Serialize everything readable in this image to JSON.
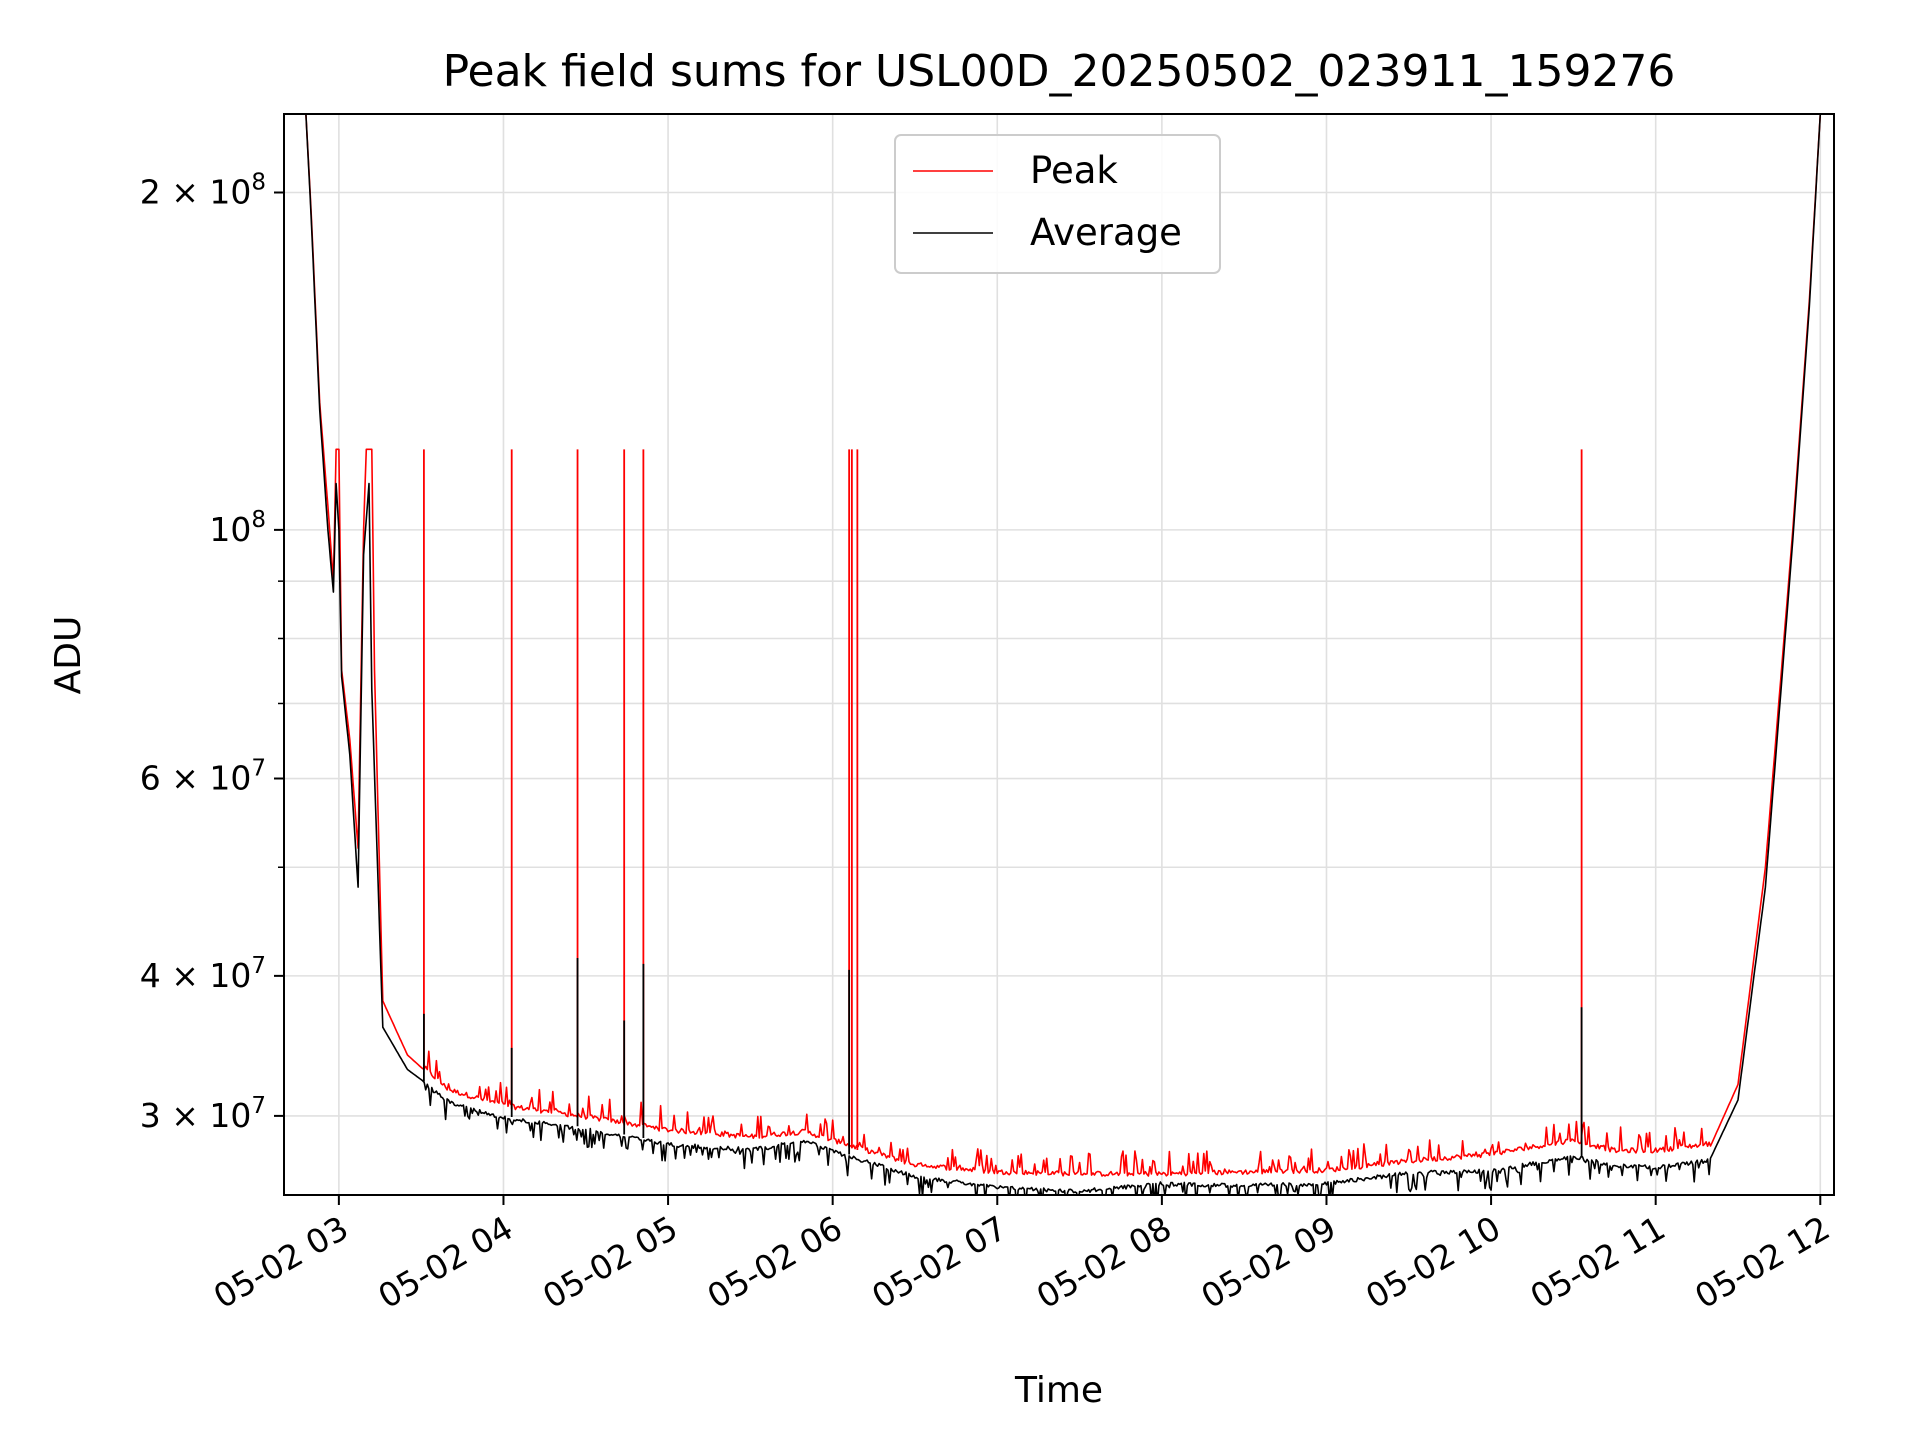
{
  "chart_data": {
    "type": "line",
    "title": "Peak field sums for USL00D_20250502_023911_159276",
    "xlabel": "Time",
    "ylabel": "ADU",
    "yscale": "log",
    "ylim": [
      25500000,
      235000000
    ],
    "xlim": [
      "2025-05-02 02:40",
      "2025-05-02 12:05"
    ],
    "grid": true,
    "legend": {
      "placement": "top-center",
      "entries": [
        "Peak",
        "Average"
      ]
    },
    "x_tick_labels": [
      "05-02 03",
      "05-02 04",
      "05-02 05",
      "05-02 06",
      "05-02 07",
      "05-02 08",
      "05-02 09",
      "05-02 10",
      "05-02 11",
      "05-02 12"
    ],
    "x_ticks": [
      "2025-05-02 03:00",
      "2025-05-02 04:00",
      "2025-05-02 05:00",
      "2025-05-02 06:00",
      "2025-05-02 07:00",
      "2025-05-02 08:00",
      "2025-05-02 09:00",
      "2025-05-02 10:00",
      "2025-05-02 11:00",
      "2025-05-02 12:00"
    ],
    "y_ticks": [
      {
        "value": 30000000,
        "mantissa": "3",
        "exponent": "7"
      },
      {
        "value": 40000000,
        "mantissa": "4",
        "exponent": "7"
      },
      {
        "value": 60000000,
        "mantissa": "6",
        "exponent": "7"
      },
      {
        "value": 100000000,
        "mantissa": "",
        "exponent": "8"
      },
      {
        "value": 200000000,
        "mantissa": "2",
        "exponent": "8"
      }
    ],
    "y_minor_ticks": [
      50000000,
      70000000,
      80000000,
      90000000
    ],
    "times_symbol": "×",
    "base": "10",
    "series": [
      {
        "name": "Peak",
        "color": "#ff0000",
        "points": [
          [
            "2025-05-02 02:40",
            235000000
          ],
          [
            "2025-05-02 02:48",
            235000000
          ],
          [
            "2025-05-02 02:50",
            190000000
          ],
          [
            "2025-05-02 02:53",
            130000000
          ],
          [
            "2025-05-02 02:56",
            105000000
          ],
          [
            "2025-05-02 02:58",
            90000000
          ],
          [
            "2025-05-02 02:59",
            118000000
          ],
          [
            "2025-05-02 03:00",
            118000000
          ],
          [
            "2025-05-02 03:01",
            75000000
          ],
          [
            "2025-05-02 03:04",
            65000000
          ],
          [
            "2025-05-02 03:07",
            52000000
          ],
          [
            "2025-05-02 03:09",
            100000000
          ],
          [
            "2025-05-02 03:10",
            118000000
          ],
          [
            "2025-05-02 03:12",
            118000000
          ],
          [
            "2025-05-02 03:13",
            75000000
          ],
          [
            "2025-05-02 03:16",
            38000000
          ],
          [
            "2025-05-02 03:25",
            34000000
          ],
          [
            "2025-05-02 03:40",
            31500000
          ],
          [
            "2025-05-02 04:00",
            30500000
          ],
          [
            "2025-05-02 04:30",
            29800000
          ],
          [
            "2025-05-02 05:00",
            29000000
          ],
          [
            "2025-05-02 05:30",
            28600000
          ],
          [
            "2025-05-02 05:50",
            28900000
          ],
          [
            "2025-05-02 06:00",
            28400000
          ],
          [
            "2025-05-02 06:30",
            27000000
          ],
          [
            "2025-05-02 07:00",
            26600000
          ],
          [
            "2025-05-02 07:30",
            26500000
          ],
          [
            "2025-05-02 08:00",
            26500000
          ],
          [
            "2025-05-02 08:30",
            26600000
          ],
          [
            "2025-05-02 09:00",
            26700000
          ],
          [
            "2025-05-02 09:30",
            27200000
          ],
          [
            "2025-05-02 10:00",
            27600000
          ],
          [
            "2025-05-02 10:30",
            28400000
          ],
          [
            "2025-05-02 10:45",
            27800000
          ],
          [
            "2025-05-02 11:00",
            27800000
          ],
          [
            "2025-05-02 11:20",
            28200000
          ],
          [
            "2025-05-02 11:30",
            32000000
          ],
          [
            "2025-05-02 11:40",
            50000000
          ],
          [
            "2025-05-02 11:50",
            100000000
          ],
          [
            "2025-05-02 11:56",
            160000000
          ],
          [
            "2025-05-02 12:00",
            235000000
          ],
          [
            "2025-05-02 12:05",
            235000000
          ]
        ],
        "spikes": [
          [
            "2025-05-02 03:31",
            118000000
          ],
          [
            "2025-05-02 04:03",
            118000000
          ],
          [
            "2025-05-02 04:27",
            118000000
          ],
          [
            "2025-05-02 04:44",
            118000000
          ],
          [
            "2025-05-02 04:51",
            118000000
          ],
          [
            "2025-05-02 06:06",
            118000000
          ],
          [
            "2025-05-02 06:07",
            118000000
          ],
          [
            "2025-05-02 06:09",
            118000000
          ],
          [
            "2025-05-02 10:33",
            118000000
          ]
        ]
      },
      {
        "name": "Average",
        "color": "#000000",
        "points": [
          [
            "2025-05-02 02:40",
            235000000
          ],
          [
            "2025-05-02 02:48",
            235000000
          ],
          [
            "2025-05-02 02:50",
            188000000
          ],
          [
            "2025-05-02 02:53",
            128000000
          ],
          [
            "2025-05-02 02:56",
            100000000
          ],
          [
            "2025-05-02 02:58",
            88000000
          ],
          [
            "2025-05-02 02:59",
            110000000
          ],
          [
            "2025-05-02 03:00",
            100000000
          ],
          [
            "2025-05-02 03:01",
            74000000
          ],
          [
            "2025-05-02 03:04",
            63000000
          ],
          [
            "2025-05-02 03:07",
            48000000
          ],
          [
            "2025-05-02 03:09",
            95000000
          ],
          [
            "2025-05-02 03:11",
            110000000
          ],
          [
            "2025-05-02 03:12",
            72000000
          ],
          [
            "2025-05-02 03:16",
            36000000
          ],
          [
            "2025-05-02 03:25",
            33000000
          ],
          [
            "2025-05-02 03:40",
            31000000
          ],
          [
            "2025-05-02 04:00",
            30000000
          ],
          [
            "2025-05-02 04:30",
            29300000
          ],
          [
            "2025-05-02 05:00",
            28400000
          ],
          [
            "2025-05-02 05:30",
            28100000
          ],
          [
            "2025-05-02 05:50",
            28600000
          ],
          [
            "2025-05-02 06:00",
            28000000
          ],
          [
            "2025-05-02 06:30",
            26600000
          ],
          [
            "2025-05-02 07:00",
            26000000
          ],
          [
            "2025-05-02 07:30",
            25800000
          ],
          [
            "2025-05-02 08:00",
            26200000
          ],
          [
            "2025-05-02 08:30",
            26100000
          ],
          [
            "2025-05-02 09:00",
            26200000
          ],
          [
            "2025-05-02 09:30",
            26800000
          ],
          [
            "2025-05-02 10:00",
            26900000
          ],
          [
            "2025-05-02 10:30",
            27700000
          ],
          [
            "2025-05-02 10:45",
            27200000
          ],
          [
            "2025-05-02 11:00",
            27100000
          ],
          [
            "2025-05-02 11:20",
            27500000
          ],
          [
            "2025-05-02 11:30",
            31000000
          ],
          [
            "2025-05-02 11:40",
            48000000
          ],
          [
            "2025-05-02 11:50",
            98000000
          ],
          [
            "2025-05-02 11:56",
            158000000
          ],
          [
            "2025-05-02 12:00",
            235000000
          ],
          [
            "2025-05-02 12:05",
            235000000
          ]
        ],
        "spikes": [
          [
            "2025-05-02 03:31",
            37000000
          ],
          [
            "2025-05-02 04:03",
            34500000
          ],
          [
            "2025-05-02 04:27",
            41500000
          ],
          [
            "2025-05-02 04:44",
            36500000
          ],
          [
            "2025-05-02 04:51",
            41000000
          ],
          [
            "2025-05-02 06:06",
            40500000
          ],
          [
            "2025-05-02 10:33",
            37500000
          ]
        ]
      }
    ]
  }
}
